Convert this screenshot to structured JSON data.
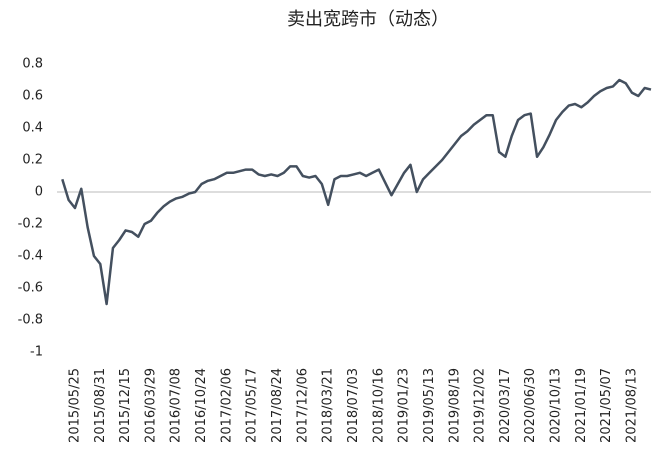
{
  "chart_data": {
    "type": "line",
    "title": "卖出宽跨市（动态）",
    "categories": [
      null,
      null,
      "2015/05/25",
      null,
      null,
      null,
      "2015/08/31",
      null,
      null,
      null,
      "2015/12/15",
      null,
      null,
      null,
      "2016/03/29",
      null,
      null,
      null,
      "2016/07/08",
      null,
      null,
      null,
      "2016/10/24",
      null,
      null,
      null,
      "2017/02/06",
      null,
      null,
      null,
      "2017/05/17",
      null,
      null,
      null,
      "2017/08/24",
      null,
      null,
      null,
      "2017/12/06",
      null,
      null,
      null,
      "2018/03/21",
      null,
      null,
      null,
      "2018/07/03",
      null,
      null,
      null,
      "2018/10/16",
      null,
      null,
      null,
      "2019/01/23",
      null,
      null,
      null,
      "2019/05/13",
      null,
      null,
      null,
      "2019/08/19",
      null,
      null,
      null,
      "2019/12/02",
      null,
      null,
      null,
      "2020/03/17",
      null,
      null,
      null,
      "2020/06/30",
      null,
      null,
      null,
      "2020/10/13",
      null,
      null,
      null,
      "2021/01/19",
      null,
      null,
      null,
      "2021/05/07",
      null,
      null,
      null,
      "2021/08/13",
      null,
      null,
      null
    ],
    "values": [
      0.08,
      -0.05,
      -0.1,
      0.02,
      -0.22,
      -0.4,
      -0.45,
      -0.7,
      -0.35,
      -0.3,
      -0.24,
      -0.25,
      -0.28,
      -0.2,
      -0.18,
      -0.13,
      -0.09,
      -0.06,
      -0.04,
      -0.03,
      -0.01,
      0.0,
      0.05,
      0.07,
      0.08,
      0.1,
      0.12,
      0.12,
      0.13,
      0.14,
      0.14,
      0.11,
      0.1,
      0.11,
      0.1,
      0.12,
      0.16,
      0.16,
      0.1,
      0.09,
      0.1,
      0.05,
      -0.08,
      0.08,
      0.1,
      0.1,
      0.11,
      0.12,
      0.1,
      0.12,
      0.14,
      0.06,
      -0.02,
      0.05,
      0.12,
      0.17,
      0.0,
      0.08,
      0.12,
      0.16,
      0.2,
      0.25,
      0.3,
      0.35,
      0.38,
      0.42,
      0.45,
      0.48,
      0.48,
      0.25,
      0.22,
      0.35,
      0.45,
      0.48,
      0.49,
      0.22,
      0.28,
      0.36,
      0.45,
      0.5,
      0.54,
      0.55,
      0.53,
      0.56,
      0.6,
      0.63,
      0.65,
      0.66,
      0.7,
      0.68,
      0.62,
      0.6,
      0.65,
      0.64
    ],
    "color": "#44505f",
    "ylim": [
      -1,
      0.8
    ],
    "yticks": [
      0.8,
      0.6,
      0.4,
      0.2,
      0,
      -0.2,
      -0.4,
      -0.6,
      -0.8,
      -1
    ],
    "grid": false
  }
}
